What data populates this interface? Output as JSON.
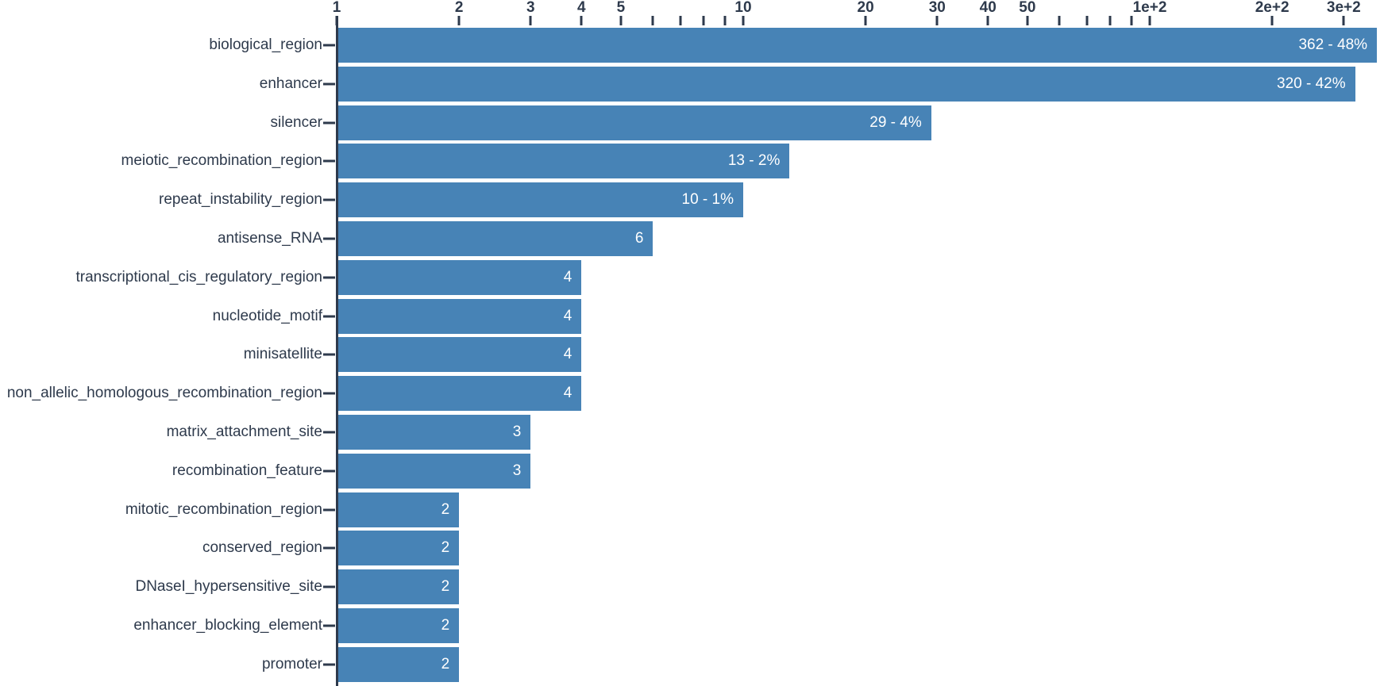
{
  "colors": {
    "bar": "#4783b6",
    "ink": "#2e3a4c",
    "bar_label": "#ffffff",
    "background": "#ffffff"
  },
  "chart_data": {
    "type": "bar",
    "orientation": "horizontal",
    "title": "",
    "xlabel": "",
    "ylabel": "",
    "x_scale": "log",
    "x_range": [
      1,
      340
    ],
    "grid": false,
    "legend": "none",
    "axis_position": "top",
    "categories": [
      "biological_region",
      "enhancer",
      "silencer",
      "meiotic_recombination_region",
      "repeat_instability_region",
      "antisense_RNA",
      "transcriptional_cis_regulatory_region",
      "nucleotide_motif",
      "minisatellite",
      "non_allelic_homologous_recombination_region",
      "matrix_attachment_site",
      "recombination_feature",
      "mitotic_recombination_region",
      "conserved_region",
      "DNaseI_hypersensitive_site",
      "enhancer_blocking_element",
      "promoter"
    ],
    "values": [
      362,
      320,
      29,
      13,
      10,
      6,
      4,
      4,
      4,
      4,
      3,
      3,
      2,
      2,
      2,
      2,
      2
    ],
    "bar_labels": [
      "362 - 48%",
      "320 - 42%",
      "29 - 4%",
      "13 - 2%",
      "10 - 1%",
      "6",
      "4",
      "4",
      "4",
      "4",
      "3",
      "3",
      "2",
      "2",
      "2",
      "2",
      "2"
    ],
    "x_ticks": [
      {
        "v": 1,
        "label": "1"
      },
      {
        "v": 2,
        "label": "2"
      },
      {
        "v": 3,
        "label": "3"
      },
      {
        "v": 4,
        "label": "4"
      },
      {
        "v": 5,
        "label": "5"
      },
      {
        "v": 6,
        "label": ""
      },
      {
        "v": 7,
        "label": ""
      },
      {
        "v": 8,
        "label": ""
      },
      {
        "v": 9,
        "label": ""
      },
      {
        "v": 10,
        "label": "10"
      },
      {
        "v": 20,
        "label": "20"
      },
      {
        "v": 30,
        "label": "30"
      },
      {
        "v": 40,
        "label": "40"
      },
      {
        "v": 50,
        "label": "50"
      },
      {
        "v": 60,
        "label": ""
      },
      {
        "v": 70,
        "label": ""
      },
      {
        "v": 80,
        "label": ""
      },
      {
        "v": 90,
        "label": ""
      },
      {
        "v": 100,
        "label": "1e+2"
      },
      {
        "v": 200,
        "label": "2e+2"
      },
      {
        "v": 300,
        "label": "3e+2"
      }
    ]
  }
}
